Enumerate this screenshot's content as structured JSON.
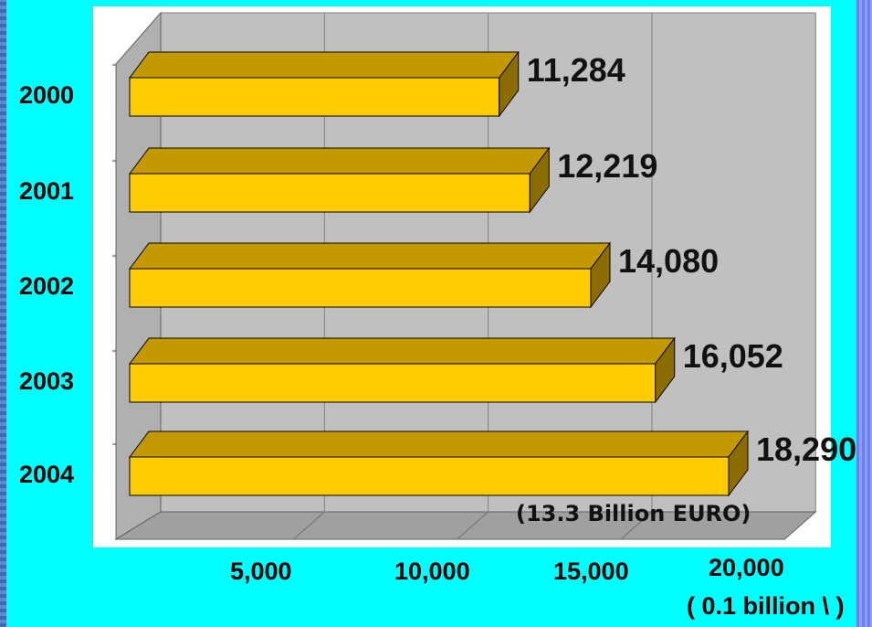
{
  "chart_data": {
    "type": "bar",
    "orientation": "horizontal",
    "categories": [
      "2000",
      "2001",
      "2002",
      "2003",
      "2004"
    ],
    "values": [
      11284,
      12219,
      14080,
      16052,
      18290
    ],
    "value_labels": [
      "11,284",
      "12,219",
      "14,080",
      "16,052",
      "18,290"
    ],
    "x_ticks": [
      {
        "value": 5000,
        "label": "5,000"
      },
      {
        "value": 10000,
        "label": "10,000"
      },
      {
        "value": 15000,
        "label": "15,000"
      },
      {
        "value": 20000,
        "label": "20,000"
      }
    ],
    "xlim": [
      0,
      20000
    ],
    "xlabel": "( 0.1 billion \\ )",
    "annotation": "(13.3 Billion EURO)",
    "grid": true,
    "style": "3d",
    "colors": {
      "bar_front": "#FFCC00",
      "bar_top": "#C29A00",
      "bar_side": "#8A6C00",
      "wall": "#C0C0C0",
      "floor": "#A0A0A0",
      "background": "#00FFFF"
    }
  }
}
